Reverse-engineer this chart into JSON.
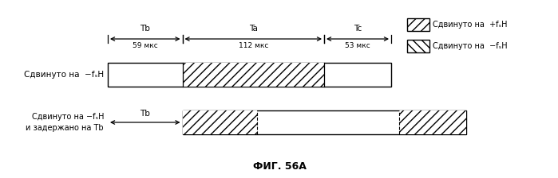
{
  "title": "ФИГ. 56А",
  "tb_us": 59,
  "ta_us": 112,
  "tc_us": 53,
  "tb_label": "Tb",
  "ta_label": "Ta",
  "tc_label": "Tc",
  "row1_label": "Сдвинуто на  −fₛH",
  "row2_label": "Сдвинуто на −fₛH\nи задержано на Tb",
  "legend_pos_label": "Сдвинуто на  +fₛH",
  "legend_neg_label": "Сдвинуто на  −fₛH",
  "hatch_pos": "///",
  "hatch_neg": "\\\\\\",
  "bg_color": "#ffffff",
  "font_size": 7.5,
  "title_font_size": 9
}
